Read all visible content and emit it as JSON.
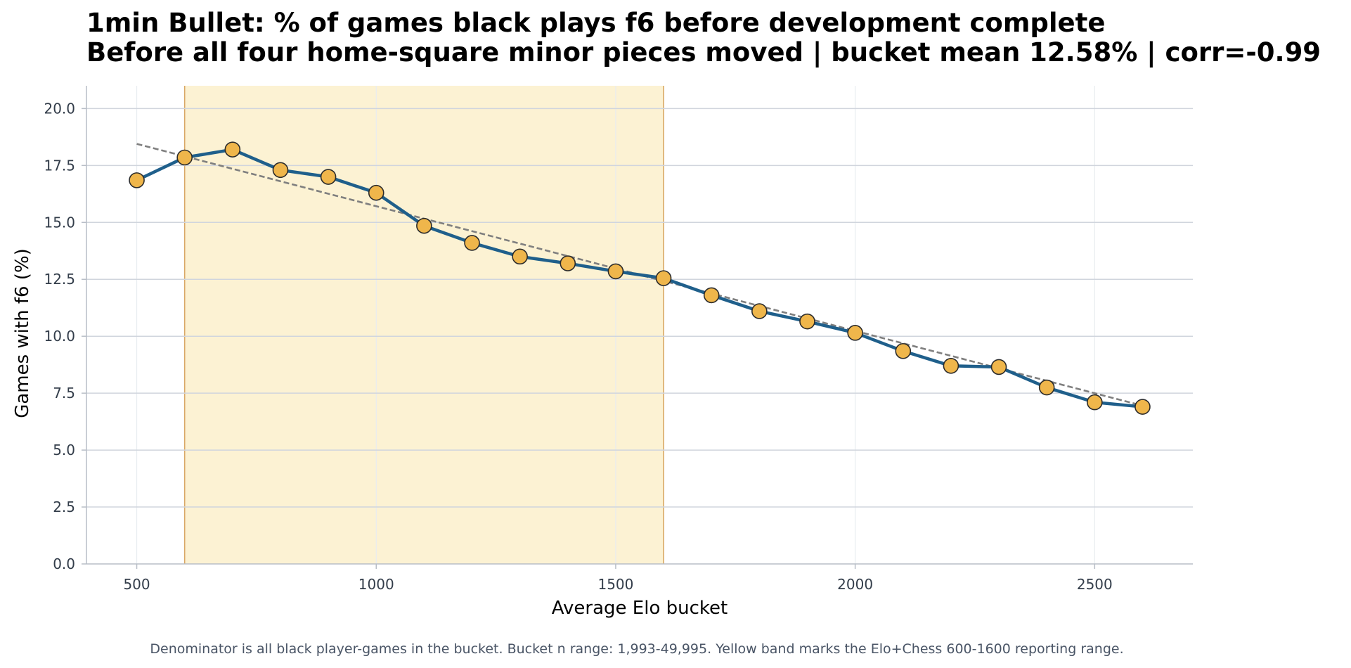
{
  "chart_data": {
    "type": "line",
    "title": "1min Bullet: % of games black plays f6 before development complete",
    "subtitle": "Before all four home-square minor pieces moved | bucket mean 12.58% | corr=-0.99",
    "xlabel": "Average Elo bucket",
    "ylabel": "Games with f6 (%)",
    "footnote": "Denominator is all black player-games in the bucket. Bucket n range: 1,993-49,995. Yellow band marks the Elo+Chess 600-1600 reporting range.",
    "xlim": [
      395,
      2705
    ],
    "ylim": [
      0,
      21
    ],
    "x_ticks": [
      500,
      1000,
      1500,
      2000,
      2500
    ],
    "y_ticks": [
      0.0,
      2.5,
      5.0,
      7.5,
      10.0,
      12.5,
      15.0,
      17.5,
      20.0
    ],
    "y_tick_labels": [
      "0.0",
      "2.5",
      "5.0",
      "7.5",
      "10.0",
      "12.5",
      "15.0",
      "17.5",
      "20.0"
    ],
    "grid": "both",
    "highlight_band": [
      600,
      1600
    ],
    "x": [
      500,
      600,
      700,
      800,
      900,
      1000,
      1100,
      1200,
      1300,
      1400,
      1500,
      1600,
      1700,
      1800,
      1900,
      2000,
      2100,
      2200,
      2300,
      2400,
      2500,
      2600
    ],
    "series": [
      {
        "values": [
          16.85,
          17.85,
          18.2,
          17.3,
          17.0,
          16.3,
          14.85,
          14.1,
          13.5,
          13.2,
          12.85,
          12.55,
          11.8,
          11.1,
          10.65,
          10.15,
          9.35,
          8.7,
          8.65,
          7.75,
          7.1,
          6.9
        ]
      }
    ],
    "trend_line": {
      "x": [
        500,
        2600
      ],
      "y": [
        18.45,
        6.95
      ]
    },
    "colors": {
      "line": "#1f5f8b",
      "marker_fill": "#efb64b",
      "marker_edge": "#2b2b2b",
      "band": "#fcf2d3",
      "band_edge": "#d9a866",
      "trend": "#7f7f7f",
      "grid_h": "#d0d5dd",
      "grid_v": "#e8ecf0",
      "axis": "#b8bec7"
    }
  }
}
